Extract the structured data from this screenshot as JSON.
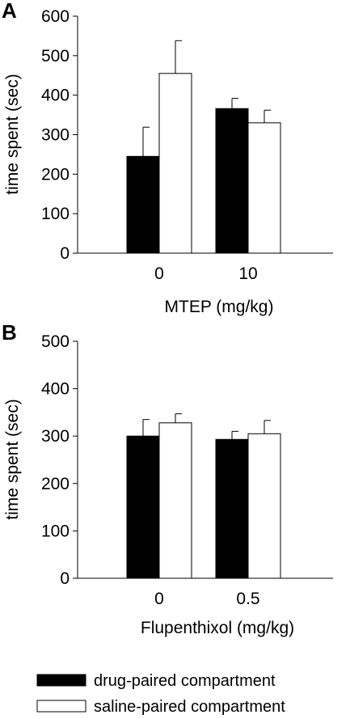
{
  "chart_data": [
    {
      "type": "bar",
      "panel_label": "A",
      "categories": [
        "0",
        "10"
      ],
      "xlabel": "MTEP (mg/kg)",
      "ylabel": "time spent (sec)",
      "ylim": [
        0,
        600
      ],
      "yticks": [
        0,
        100,
        200,
        300,
        400,
        500,
        600
      ],
      "series": [
        {
          "name": "drug-paired compartment",
          "values": [
            245,
            366
          ],
          "errors": [
            74,
            26
          ],
          "color": "#000000"
        },
        {
          "name": "saline-paired compartment",
          "values": [
            455,
            330
          ],
          "errors": [
            83,
            32
          ],
          "color": "#ffffff"
        }
      ]
    },
    {
      "type": "bar",
      "panel_label": "B",
      "categories": [
        "0",
        "0.5"
      ],
      "xlabel": "Flupenthixol (mg/kg)",
      "ylabel": "time spent (sec)",
      "ylim": [
        0,
        500
      ],
      "yticks": [
        0,
        100,
        200,
        300,
        400,
        500
      ],
      "series": [
        {
          "name": "drug-paired compartment",
          "values": [
            300,
            293
          ],
          "errors": [
            35,
            17
          ],
          "color": "#000000"
        },
        {
          "name": "saline-paired compartment",
          "values": [
            328,
            305
          ],
          "errors": [
            19,
            28
          ],
          "color": "#ffffff"
        }
      ]
    }
  ],
  "legend": [
    {
      "label": "drug-paired compartment",
      "color": "#000000"
    },
    {
      "label": "saline-paired compartment",
      "color": "#ffffff"
    }
  ]
}
